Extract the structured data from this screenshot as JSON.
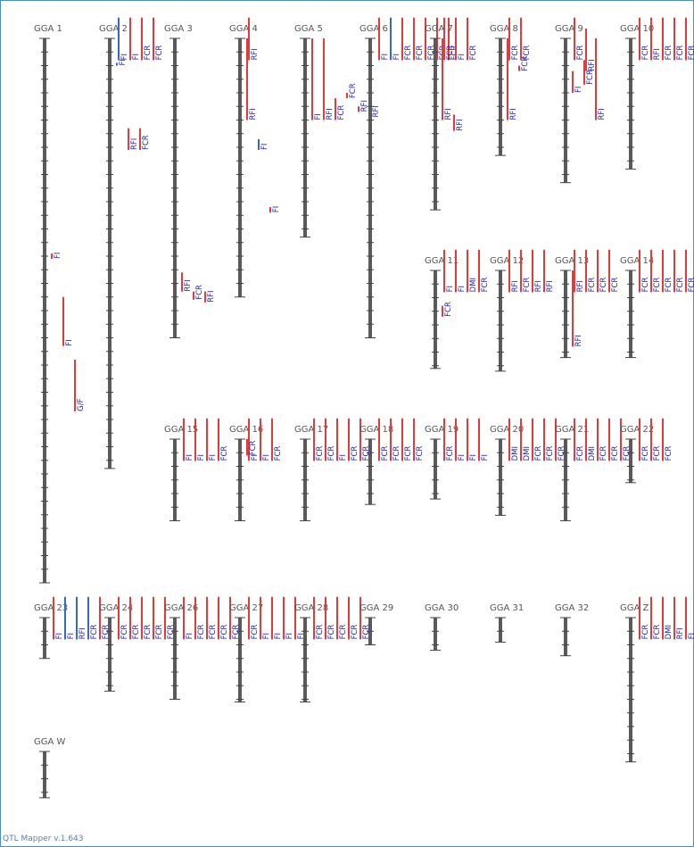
{
  "app": {
    "footer": "QTL Mapper v.1.643"
  },
  "colors": {
    "chromosome": "#5a5a5a",
    "tick": "#444444",
    "qtl_red": "#e23b3b",
    "qtl_blue": "#3a66c4",
    "label": "#1a1ab0"
  },
  "chromosomes": [
    {
      "name": "GGA 1",
      "length": 200,
      "qtls": [
        {
          "trait": "FI",
          "start": 79,
          "end": 81,
          "color": "red"
        },
        {
          "trait": "FI",
          "start": 95,
          "end": 113,
          "color": "red"
        },
        {
          "trait": "G/F",
          "start": 118,
          "end": 137,
          "color": "red"
        }
      ]
    },
    {
      "name": "GGA 2",
      "length": 158,
      "qtls": [
        {
          "trait": "FI",
          "start": -5,
          "end": 8,
          "color": "blue"
        },
        {
          "trait": "FI",
          "start": -5,
          "end": 8,
          "color": "red"
        },
        {
          "trait": "FCR",
          "start": -5,
          "end": 8,
          "color": "red"
        },
        {
          "trait": "FCR",
          "start": -5,
          "end": 8,
          "color": "red"
        },
        {
          "trait": "FI",
          "start": 9,
          "end": 10,
          "color": "blue"
        },
        {
          "trait": "RFI",
          "start": 33,
          "end": 41,
          "color": "red"
        },
        {
          "trait": "FCR",
          "start": 33,
          "end": 41,
          "color": "red"
        }
      ]
    },
    {
      "name": "GGA 3",
      "length": 110,
      "qtls": [
        {
          "trait": "RFI",
          "start": 86,
          "end": 93,
          "color": "red"
        },
        {
          "trait": "FCR",
          "start": 93,
          "end": 96,
          "color": "red"
        },
        {
          "trait": "RFI",
          "start": 93,
          "end": 97,
          "color": "red"
        }
      ]
    },
    {
      "name": "GGA 4",
      "length": 95,
      "qtls": [
        {
          "trait": "RFI",
          "start": -5,
          "end": 8,
          "color": "red"
        },
        {
          "trait": "RFI",
          "start": 0,
          "end": 30,
          "color": "red"
        },
        {
          "trait": "FI",
          "start": 37,
          "end": 41,
          "color": "blue"
        },
        {
          "trait": "FI",
          "start": 62,
          "end": 64,
          "color": "red"
        }
      ]
    },
    {
      "name": "GGA 5",
      "length": 73,
      "qtls": [
        {
          "trait": "FI",
          "start": 0,
          "end": 30,
          "color": "red"
        },
        {
          "trait": "RFI",
          "start": 0,
          "end": 30,
          "color": "red"
        },
        {
          "trait": "FCR",
          "start": 22,
          "end": 30,
          "color": "red"
        },
        {
          "trait": "FCR",
          "start": 20,
          "end": 22,
          "color": "red"
        },
        {
          "trait": "RFI",
          "start": 25,
          "end": 27,
          "color": "red"
        },
        {
          "trait": "RFI",
          "start": 28,
          "end": 29,
          "color": "red"
        }
      ]
    },
    {
      "name": "GGA 6",
      "length": 110,
      "qtls": [
        {
          "trait": "FI",
          "start": -5,
          "end": 8,
          "color": "red"
        },
        {
          "trait": "FI",
          "start": -5,
          "end": 8,
          "color": "blue"
        },
        {
          "trait": "FCR",
          "start": -5,
          "end": 8,
          "color": "red"
        },
        {
          "trait": "FCR",
          "start": -5,
          "end": 8,
          "color": "red"
        },
        {
          "trait": "FCR",
          "start": -5,
          "end": 8,
          "color": "red"
        },
        {
          "trait": "FCR",
          "start": -5,
          "end": 8,
          "color": "red"
        },
        {
          "trait": "FCR",
          "start": -5,
          "end": 8,
          "color": "red"
        }
      ]
    },
    {
      "name": "GGA 7",
      "length": 63,
      "qtls": [
        {
          "trait": "RFI",
          "start": 0,
          "end": 30,
          "color": "red"
        },
        {
          "trait": "RFI",
          "start": 28,
          "end": 34,
          "color": "red"
        },
        {
          "trait": "FCR",
          "start": -5,
          "end": 8,
          "color": "red"
        },
        {
          "trait": "FI",
          "start": -5,
          "end": 8,
          "color": "red"
        },
        {
          "trait": "FCR",
          "start": -5,
          "end": 8,
          "color": "red"
        }
      ]
    },
    {
      "name": "GGA 8",
      "length": 43,
      "qtls": [
        {
          "trait": "RFI",
          "start": 0,
          "end": 30,
          "color": "red"
        },
        {
          "trait": "FCR",
          "start": 10,
          "end": 12,
          "color": "red"
        },
        {
          "trait": "FCR",
          "start": -5,
          "end": 8,
          "color": "red"
        },
        {
          "trait": "FCR",
          "start": -5,
          "end": 8,
          "color": "red"
        }
      ]
    },
    {
      "name": "GGA 9",
      "length": 53,
      "qtls": [
        {
          "trait": "FCR",
          "start": -5,
          "end": 8,
          "color": "red"
        },
        {
          "trait": "FI",
          "start": 12,
          "end": 20,
          "color": "red"
        },
        {
          "trait": "RFI",
          "start": -1,
          "end": 12,
          "color": "red"
        },
        {
          "trait": "FCR",
          "start": 8,
          "end": 17,
          "color": "red"
        },
        {
          "trait": "RFI",
          "start": 0,
          "end": 30,
          "color": "red"
        }
      ]
    },
    {
      "name": "GGA 10",
      "length": 48,
      "qtls": [
        {
          "trait": "FCR",
          "start": -5,
          "end": 8,
          "color": "red"
        },
        {
          "trait": "RFI",
          "start": -5,
          "end": 8,
          "color": "red"
        },
        {
          "trait": "FCR",
          "start": -5,
          "end": 8,
          "color": "red"
        },
        {
          "trait": "FCR",
          "start": -5,
          "end": 8,
          "color": "red"
        },
        {
          "trait": "FCR",
          "start": -5,
          "end": 8,
          "color": "red"
        },
        {
          "trait": "FCR",
          "start": -5,
          "end": 8,
          "color": "red"
        }
      ]
    },
    {
      "name": "GGA 11",
      "length": 36,
      "qtls": [
        {
          "trait": "FI",
          "start": -5,
          "end": 8,
          "color": "red"
        },
        {
          "trait": "FI",
          "start": -5,
          "end": 8,
          "color": "red"
        },
        {
          "trait": "DMI",
          "start": -5,
          "end": 8,
          "color": "red"
        },
        {
          "trait": "FCR",
          "start": -5,
          "end": 8,
          "color": "red"
        },
        {
          "trait": "FCR",
          "start": 13,
          "end": 17,
          "color": "red"
        }
      ]
    },
    {
      "name": "GGA 12",
      "length": 37,
      "qtls": [
        {
          "trait": "RFI",
          "start": -5,
          "end": 8,
          "color": "red"
        },
        {
          "trait": "FCR",
          "start": -5,
          "end": 8,
          "color": "red"
        },
        {
          "trait": "RFI",
          "start": -5,
          "end": 8,
          "color": "red"
        },
        {
          "trait": "RFI",
          "start": -5,
          "end": 8,
          "color": "red"
        }
      ]
    },
    {
      "name": "GGA 13",
      "length": 32,
      "qtls": [
        {
          "trait": "RFI",
          "start": -5,
          "end": 8,
          "color": "red"
        },
        {
          "trait": "RFI",
          "start": 0,
          "end": 28,
          "color": "red"
        },
        {
          "trait": "FCR",
          "start": -5,
          "end": 8,
          "color": "red"
        },
        {
          "trait": "FCR",
          "start": -5,
          "end": 8,
          "color": "red"
        },
        {
          "trait": "FCR",
          "start": -5,
          "end": 8,
          "color": "red"
        }
      ]
    },
    {
      "name": "GGA 14",
      "length": 32,
      "qtls": [
        {
          "trait": "FCR",
          "start": -5,
          "end": 8,
          "color": "red"
        },
        {
          "trait": "FCR",
          "start": -5,
          "end": 8,
          "color": "red"
        },
        {
          "trait": "FCR",
          "start": -5,
          "end": 8,
          "color": "red"
        },
        {
          "trait": "FCR",
          "start": -5,
          "end": 8,
          "color": "red"
        },
        {
          "trait": "FCR",
          "start": -5,
          "end": 8,
          "color": "red"
        }
      ]
    },
    {
      "name": "GGA 15",
      "length": 30,
      "qtls": [
        {
          "trait": "FI",
          "start": -5,
          "end": 8,
          "color": "red"
        },
        {
          "trait": "FI",
          "start": -5,
          "end": 8,
          "color": "red"
        },
        {
          "trait": "FI",
          "start": -5,
          "end": 8,
          "color": "red"
        },
        {
          "trait": "FCR",
          "start": -5,
          "end": 8,
          "color": "red"
        }
      ]
    },
    {
      "name": "GGA 16",
      "length": 30,
      "qtls": [
        {
          "trait": "FI",
          "start": -5,
          "end": 8,
          "color": "red"
        },
        {
          "trait": "FCR",
          "start": 0,
          "end": 6,
          "color": "red"
        },
        {
          "trait": "FI",
          "start": -5,
          "end": 8,
          "color": "red"
        },
        {
          "trait": "FCR",
          "start": -5,
          "end": 8,
          "color": "red"
        }
      ]
    },
    {
      "name": "GGA 17",
      "length": 30,
      "qtls": [
        {
          "trait": "FCR",
          "start": -5,
          "end": 8,
          "color": "red"
        },
        {
          "trait": "FCR",
          "start": -5,
          "end": 8,
          "color": "red"
        },
        {
          "trait": "FI",
          "start": -5,
          "end": 8,
          "color": "red"
        },
        {
          "trait": "FCR",
          "start": -5,
          "end": 8,
          "color": "red"
        },
        {
          "trait": "FCR",
          "start": -5,
          "end": 8,
          "color": "red"
        }
      ]
    },
    {
      "name": "GGA 18",
      "length": 24,
      "qtls": [
        {
          "trait": "FCR",
          "start": -5,
          "end": 8,
          "color": "red"
        },
        {
          "trait": "FCR",
          "start": -5,
          "end": 8,
          "color": "red"
        },
        {
          "trait": "FCR",
          "start": -5,
          "end": 8,
          "color": "red"
        },
        {
          "trait": "FCR",
          "start": -5,
          "end": 8,
          "color": "red"
        }
      ]
    },
    {
      "name": "GGA 19",
      "length": 22,
      "qtls": [
        {
          "trait": "FCR",
          "start": -5,
          "end": 8,
          "color": "red"
        },
        {
          "trait": "FI",
          "start": -5,
          "end": 8,
          "color": "red"
        },
        {
          "trait": "FI",
          "start": -5,
          "end": 8,
          "color": "red"
        },
        {
          "trait": "FI",
          "start": -5,
          "end": 8,
          "color": "red"
        }
      ]
    },
    {
      "name": "GGA 20",
      "length": 28,
      "qtls": [
        {
          "trait": "DMI",
          "start": -5,
          "end": 8,
          "color": "red"
        },
        {
          "trait": "DMI",
          "start": -5,
          "end": 8,
          "color": "red"
        },
        {
          "trait": "FCR",
          "start": -5,
          "end": 8,
          "color": "red"
        },
        {
          "trait": "FCR",
          "start": -5,
          "end": 8,
          "color": "red"
        },
        {
          "trait": "FCR",
          "start": -5,
          "end": 8,
          "color": "red"
        }
      ]
    },
    {
      "name": "GGA 21",
      "length": 30,
      "qtls": [
        {
          "trait": "FCR",
          "start": -5,
          "end": 8,
          "color": "red"
        },
        {
          "trait": "DMI",
          "start": -5,
          "end": 8,
          "color": "red"
        },
        {
          "trait": "FCR",
          "start": -5,
          "end": 8,
          "color": "red"
        },
        {
          "trait": "FCR",
          "start": -5,
          "end": 8,
          "color": "red"
        },
        {
          "trait": "FCR",
          "start": -5,
          "end": 8,
          "color": "red"
        }
      ]
    },
    {
      "name": "GGA 22",
      "length": 16,
      "qtls": [
        {
          "trait": "FCR",
          "start": -5,
          "end": 8,
          "color": "red"
        },
        {
          "trait": "FCR",
          "start": -5,
          "end": 8,
          "color": "red"
        },
        {
          "trait": "FCR",
          "start": -5,
          "end": 8,
          "color": "red"
        }
      ]
    },
    {
      "name": "GGA 23",
      "length": 15,
      "qtls": [
        {
          "trait": "FI",
          "start": -5,
          "end": 8,
          "color": "red"
        },
        {
          "trait": "FI",
          "start": -5,
          "end": 8,
          "color": "blue"
        },
        {
          "trait": "RFI",
          "start": -5,
          "end": 8,
          "color": "blue"
        },
        {
          "trait": "FCR",
          "start": -5,
          "end": 8,
          "color": "blue"
        },
        {
          "trait": "FCR",
          "start": -5,
          "end": 8,
          "color": "red"
        }
      ]
    },
    {
      "name": "GGA 24",
      "length": 27,
      "qtls": [
        {
          "trait": "FCR",
          "start": -5,
          "end": 8,
          "color": "red"
        },
        {
          "trait": "FCR",
          "start": -5,
          "end": 8,
          "color": "red"
        },
        {
          "trait": "FCR",
          "start": -5,
          "end": 8,
          "color": "red"
        },
        {
          "trait": "FCR",
          "start": -5,
          "end": 8,
          "color": "red"
        },
        {
          "trait": "FCR",
          "start": -5,
          "end": 8,
          "color": "red"
        }
      ]
    },
    {
      "name": "GGA 26",
      "length": 30,
      "qtls": [
        {
          "trait": "FI",
          "start": -5,
          "end": 8,
          "color": "red"
        },
        {
          "trait": "FCR",
          "start": -5,
          "end": 8,
          "color": "red"
        },
        {
          "trait": "FCR",
          "start": -5,
          "end": 8,
          "color": "red"
        },
        {
          "trait": "FCR",
          "start": -5,
          "end": 8,
          "color": "red"
        },
        {
          "trait": "FCR",
          "start": -5,
          "end": 8,
          "color": "red"
        }
      ]
    },
    {
      "name": "GGA 27",
      "length": 31,
      "qtls": [
        {
          "trait": "FCR",
          "start": -5,
          "end": 8,
          "color": "red"
        },
        {
          "trait": "FI",
          "start": -5,
          "end": 8,
          "color": "red"
        },
        {
          "trait": "FI",
          "start": -5,
          "end": 8,
          "color": "red"
        },
        {
          "trait": "FI",
          "start": -5,
          "end": 8,
          "color": "red"
        },
        {
          "trait": "FI",
          "start": -5,
          "end": 8,
          "color": "red"
        }
      ]
    },
    {
      "name": "GGA 28",
      "length": 31,
      "qtls": [
        {
          "trait": "FCR",
          "start": -5,
          "end": 8,
          "color": "red"
        },
        {
          "trait": "FCR",
          "start": -5,
          "end": 8,
          "color": "red"
        },
        {
          "trait": "FCR",
          "start": -5,
          "end": 8,
          "color": "red"
        },
        {
          "trait": "FCR",
          "start": -5,
          "end": 8,
          "color": "red"
        },
        {
          "trait": "FCR",
          "start": -5,
          "end": 8,
          "color": "red"
        }
      ]
    },
    {
      "name": "GGA 29",
      "length": 10,
      "qtls": []
    },
    {
      "name": "GGA 30",
      "length": 12,
      "qtls": []
    },
    {
      "name": "GGA 31",
      "length": 9,
      "qtls": []
    },
    {
      "name": "GGA 32",
      "length": 14,
      "qtls": []
    },
    {
      "name": "GGA Z",
      "length": 53,
      "qtls": [
        {
          "trait": "FCR",
          "start": -5,
          "end": 8,
          "color": "red"
        },
        {
          "trait": "FCR",
          "start": -5,
          "end": 8,
          "color": "red"
        },
        {
          "trait": "DMI",
          "start": -5,
          "end": 8,
          "color": "red"
        },
        {
          "trait": "RFI",
          "start": -5,
          "end": 8,
          "color": "red"
        },
        {
          "trait": "FI",
          "start": -5,
          "end": 8,
          "color": "red"
        }
      ]
    },
    {
      "name": "GGA W",
      "length": 17,
      "qtls": []
    }
  ]
}
